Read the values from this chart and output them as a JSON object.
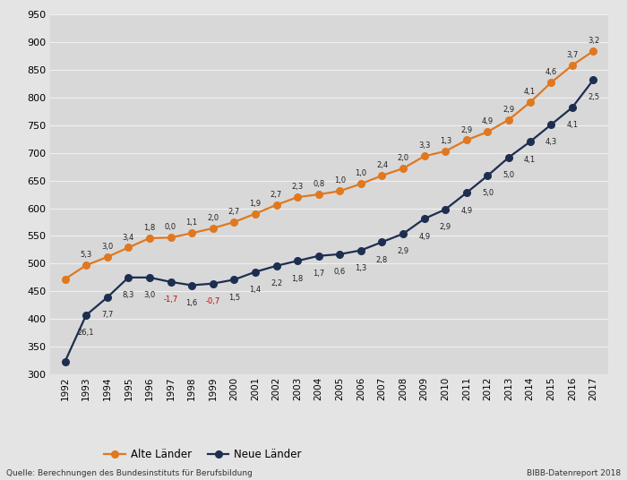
{
  "years": [
    1992,
    1993,
    1994,
    1995,
    1996,
    1997,
    1998,
    1999,
    2000,
    2001,
    2002,
    2003,
    2004,
    2005,
    2006,
    2007,
    2008,
    2009,
    2010,
    2011,
    2012,
    2013,
    2014,
    2015,
    2016,
    2017
  ],
  "alte_laender": [
    472,
    497,
    512,
    529,
    546,
    547,
    555,
    564,
    575,
    590,
    606,
    620,
    625,
    631,
    644,
    659,
    672,
    694,
    703,
    723,
    738,
    760,
    791,
    827,
    858,
    884
  ],
  "neue_laender": [
    323,
    407,
    439,
    475,
    475,
    467,
    461,
    464,
    471,
    485,
    496,
    505,
    514,
    517,
    524,
    539,
    554,
    581,
    598,
    628,
    659,
    692,
    720,
    751,
    782,
    832
  ],
  "alte_rates": [
    null,
    5.3,
    3.0,
    3.4,
    1.8,
    0.0,
    1.1,
    2.0,
    2.7,
    1.9,
    2.7,
    2.3,
    0.8,
    1.0,
    1.0,
    2.4,
    2.0,
    3.3,
    1.3,
    2.9,
    4.9,
    2.9,
    4.1,
    4.6,
    3.7,
    3.2
  ],
  "neue_rates": [
    null,
    26.1,
    7.7,
    8.3,
    3.0,
    -1.7,
    1.6,
    -0.7,
    1.5,
    1.4,
    2.2,
    1.8,
    1.7,
    0.6,
    1.3,
    2.8,
    2.9,
    4.9,
    2.9,
    4.9,
    5.0,
    5.0,
    4.1,
    4.3,
    4.1,
    2.5
  ],
  "alte_color": "#e07820",
  "neue_color": "#1e2e50",
  "bg_color": "#e4e4e4",
  "plot_bg_color": "#d8d8d8",
  "grid_color": "#f0f0f0",
  "ylim": [
    300,
    950
  ],
  "yticks": [
    300,
    350,
    400,
    450,
    500,
    550,
    600,
    650,
    700,
    750,
    800,
    850,
    900,
    950
  ],
  "legend_alte": "Alte Länder",
  "legend_neue": "Neue Länder",
  "source_left": "Quelle: Berechnungen des Bundesinstituts für Berufsbildung",
  "source_right": "BIBB-Datenreport 2018",
  "negative_rate_color": "#cc0000",
  "marker_size": 5.5,
  "linewidth": 1.6
}
